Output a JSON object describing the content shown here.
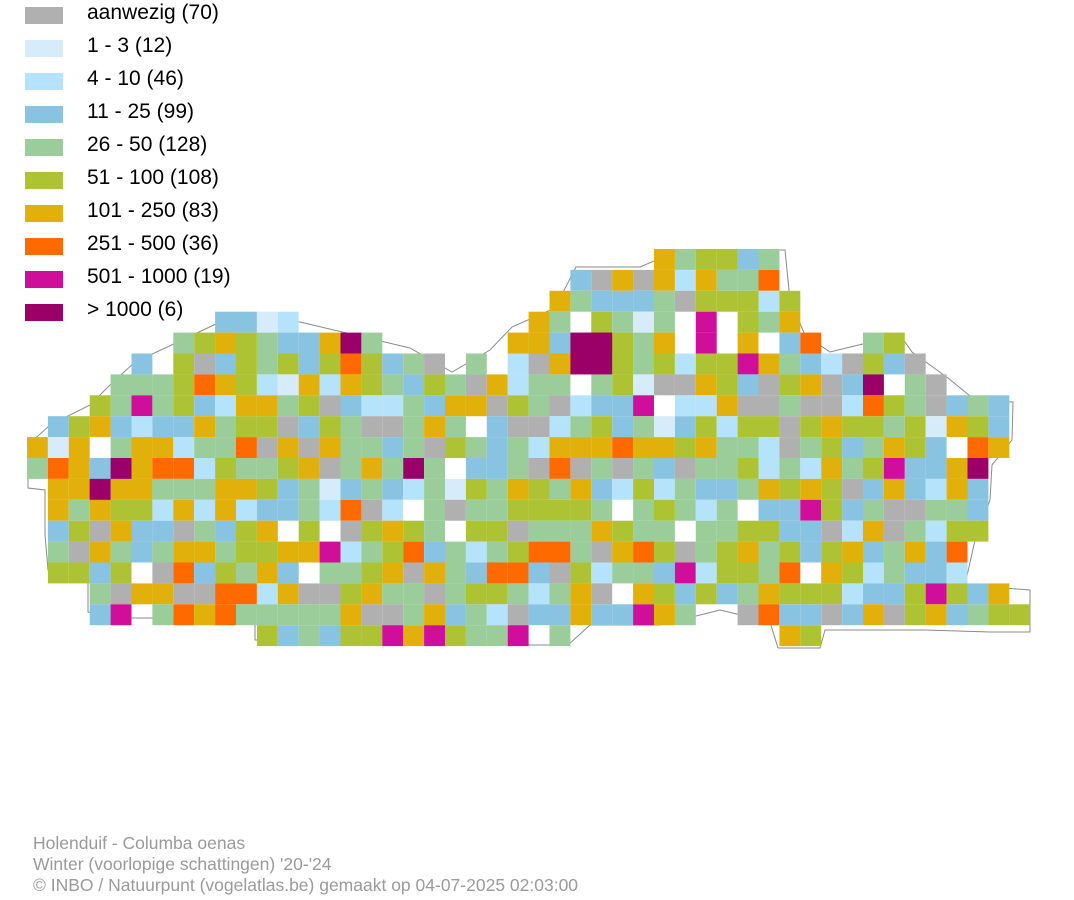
{
  "legend": [
    {
      "label": "aanwezig (70)",
      "color": "#b0b0b0"
    },
    {
      "label": "1 - 3 (12)",
      "color": "#d6ecfa"
    },
    {
      "label": "4 - 10 (46)",
      "color": "#b5e3fb"
    },
    {
      "label": "11 - 25 (99)",
      "color": "#88c4e2"
    },
    {
      "label": "26 - 50 (128)",
      "color": "#9acd9a"
    },
    {
      "label": "51 - 100 (108)",
      "color": "#aec334"
    },
    {
      "label": "101 - 250 (83)",
      "color": "#e1b00a"
    },
    {
      "label": "251 - 500 (36)",
      "color": "#ff6a00"
    },
    {
      "label": "501 - 1000 (19)",
      "color": "#cf0e9a"
    },
    {
      "label": "> 1000 (6)",
      "color": "#9b0068"
    }
  ],
  "caption": {
    "species": "Holenduif - Columba oenas",
    "season": "Winter (voorlopige schattingen) '20-'24",
    "credit": "© INBO / Natuurpunt (vogelatlas.be) gemaakt op 04-07-2025 02:03:00"
  },
  "map": {
    "border_color": "#8a8a8a",
    "region": "Flanders atlas grid"
  }
}
